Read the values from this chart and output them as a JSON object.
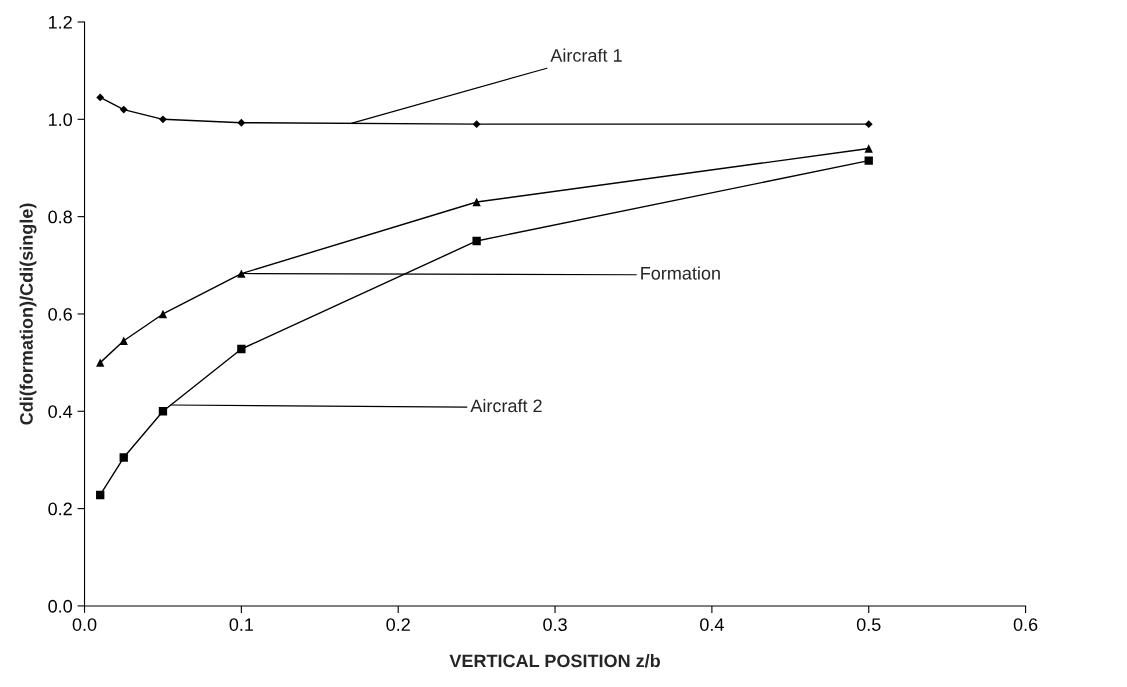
{
  "chart_data": {
    "type": "line",
    "xlabel": "VERTICAL POSITION z/b",
    "ylabel": "Cdi(formation)/Cdi(single)",
    "x": [
      0.01,
      0.025,
      0.05,
      0.1,
      0.25,
      0.5
    ],
    "series": [
      {
        "name": "Aircraft 1",
        "color": "#000000",
        "marker": "diamond",
        "values": [
          1.045,
          1.02,
          1.0,
          0.993,
          0.99,
          0.99
        ]
      },
      {
        "name": "Formation",
        "color": "#000000",
        "marker": "triangle",
        "values": [
          0.5,
          0.545,
          0.6,
          0.683,
          0.83,
          0.94
        ]
      },
      {
        "name": "Aircraft 2",
        "color": "#000000",
        "marker": "square",
        "values": [
          0.228,
          0.305,
          0.4,
          0.528,
          0.75,
          0.915
        ]
      }
    ],
    "xlim": [
      0,
      0.6
    ],
    "ylim": [
      0,
      1.2
    ],
    "xticks": [
      {
        "value": 0,
        "label": "0.0"
      },
      0.1,
      0.2,
      0.3,
      0.4,
      0.5,
      0.6
    ],
    "yticks": [
      {
        "value": 0,
        "label": "0.0"
      },
      0.2,
      0.4,
      0.6,
      0.8,
      {
        "value": 1,
        "label": "1.0"
      },
      1.2
    ],
    "grid": false,
    "legend": false,
    "line_style": "solid"
  }
}
